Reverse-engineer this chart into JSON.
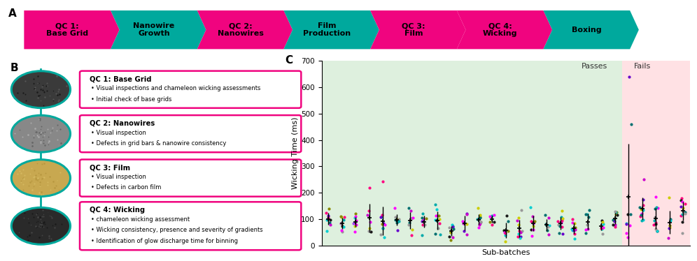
{
  "arrow_steps": [
    {
      "label": "QC 1:\nBase Grid",
      "color": "#F0047F"
    },
    {
      "label": "Nanowire\nGrowth",
      "color": "#00A99D"
    },
    {
      "label": "QC 2:\nNanowires",
      "color": "#F0047F"
    },
    {
      "label": "Film\nProduction",
      "color": "#00A99D"
    },
    {
      "label": "QC 3:\nFilm",
      "color": "#F0047F"
    },
    {
      "label": "QC 4:\nWicking",
      "color": "#F0047F"
    },
    {
      "label": "Boxing",
      "color": "#00A99D"
    }
  ],
  "panel_A_label": "A",
  "panel_B_label": "B",
  "panel_C_label": "C",
  "qc_boxes": [
    {
      "title": "QC 1: Base Grid",
      "bullets": [
        "Visual inspections and chameleon wicking assessments",
        "Initial check of base grids"
      ],
      "circle_colors": [
        "#3a3a3a",
        "#1a1a1a",
        "#555555"
      ]
    },
    {
      "title": "QC 2: Nanowires",
      "bullets": [
        "Visual inspection",
        "Defects in grid bars & nanowire consistency"
      ],
      "circle_colors": [
        "#888888",
        "#aaaaaa",
        "#666666"
      ]
    },
    {
      "title": "QC 3: Film",
      "bullets": [
        "Visual inspection",
        "Defects in carbon film"
      ],
      "circle_colors": [
        "#c8a850",
        "#d4b860",
        "#b89840"
      ]
    },
    {
      "title": "QC 4: Wicking",
      "bullets": [
        "chameleon wicking assessment",
        "Wicking consistency, presence and severity of gradients",
        "Identification of glow discharge time for binning"
      ],
      "circle_colors": [
        "#2a2a2a",
        "#444444",
        "#1a1a1a"
      ]
    }
  ],
  "scatter_ylabel": "Wicking Time (ms)",
  "scatter_xlabel": "Sub-batches",
  "scatter_ylim": [
    0,
    700
  ],
  "scatter_yticks": [
    0,
    100,
    200,
    300,
    400,
    500,
    600,
    700
  ],
  "passes_label": "Passes",
  "fails_label": "Fails",
  "passes_color": "#c8e6c9",
  "fails_color": "#ffcdd2",
  "n_pass_batches": 22,
  "n_fail_batches": 5,
  "scatter_colors": [
    "#FF00FF",
    "#FF0080",
    "#00CED1",
    "#6600CC",
    "#999999",
    "#CCCC00",
    "#1a1a1a",
    "#888800",
    "#007070",
    "#00AAAA",
    "#CC00CC"
  ],
  "box_border_color": "#F0047F",
  "circle_border_color": "#00A99D",
  "connector_color": "#00A99D"
}
